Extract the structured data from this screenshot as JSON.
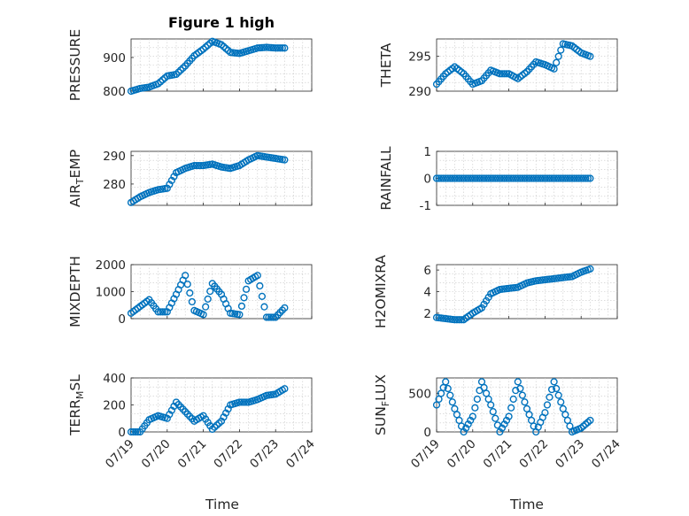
{
  "figure_title": "Figure 1 high",
  "colors": {
    "marker": "#0072bd",
    "axes": "#262626",
    "grid": "#c8c8c8"
  },
  "chart_data": [
    {
      "type": "scatter",
      "title": "Figure 1 high",
      "ylabel": "PRESSURE",
      "xlim": [
        "07/19",
        "07/24"
      ],
      "ylim": [
        800,
        955
      ],
      "yticks": [
        800,
        900
      ],
      "grid": true,
      "series": [
        {
          "x": [
            "07/19 00:00",
            "07/19 06:00",
            "07/19 12:00",
            "07/19 18:00",
            "07/20 00:00",
            "07/20 06:00",
            "07/20 12:00",
            "07/20 18:00",
            "07/21 00:00",
            "07/21 06:00",
            "07/21 12:00",
            "07/21 18:00",
            "07/22 00:00",
            "07/22 06:00",
            "07/22 12:00",
            "07/22 18:00",
            "07/23 00:00",
            "07/23 06:00"
          ],
          "y": [
            800,
            808,
            812,
            822,
            845,
            850,
            875,
            905,
            925,
            948,
            938,
            915,
            912,
            920,
            928,
            930,
            928,
            928
          ]
        }
      ]
    },
    {
      "type": "scatter",
      "ylabel": "THETA",
      "xlim": [
        "07/19",
        "07/24"
      ],
      "ylim": [
        290,
        297.5
      ],
      "yticks": [
        290,
        295
      ],
      "grid": true,
      "series": [
        {
          "x": [
            "07/19 00:00",
            "07/19 06:00",
            "07/19 12:00",
            "07/19 18:00",
            "07/20 00:00",
            "07/20 06:00",
            "07/20 12:00",
            "07/20 18:00",
            "07/21 00:00",
            "07/21 06:00",
            "07/21 12:00",
            "07/21 18:00",
            "07/22 00:00",
            "07/22 06:00",
            "07/22 12:00",
            "07/22 18:00",
            "07/23 00:00",
            "07/23 06:00"
          ],
          "y": [
            291,
            292.5,
            293.5,
            292.5,
            291,
            291.5,
            293,
            292.5,
            292.5,
            291.8,
            292.8,
            294.2,
            293.8,
            293.2,
            296.8,
            296.5,
            295.5,
            295
          ]
        }
      ]
    },
    {
      "type": "scatter",
      "ylabel": "AIR_TEMP",
      "xlim": [
        "07/19",
        "07/24"
      ],
      "ylim": [
        272.5,
        291.5
      ],
      "yticks": [
        280,
        290
      ],
      "grid": true,
      "series": [
        {
          "x": [
            "07/19 00:00",
            "07/19 06:00",
            "07/19 12:00",
            "07/19 18:00",
            "07/20 00:00",
            "07/20 06:00",
            "07/20 12:00",
            "07/20 18:00",
            "07/21 00:00",
            "07/21 06:00",
            "07/21 12:00",
            "07/21 18:00",
            "07/22 00:00",
            "07/22 06:00",
            "07/22 12:00",
            "07/22 18:00",
            "07/23 00:00",
            "07/23 06:00"
          ],
          "y": [
            273.5,
            275.5,
            277,
            278,
            278.5,
            284,
            285.5,
            286.5,
            286.5,
            287,
            286,
            285.5,
            286.5,
            288.5,
            290,
            289.5,
            289,
            288.5
          ]
        }
      ]
    },
    {
      "type": "scatter",
      "ylabel": "RAINFALL",
      "xlim": [
        "07/19",
        "07/24"
      ],
      "ylim": [
        -1,
        1
      ],
      "yticks": [
        -1,
        0,
        1
      ],
      "grid": true,
      "series": [
        {
          "x": [
            "07/19 00:00",
            "07/19 06:00",
            "07/19 12:00",
            "07/19 18:00",
            "07/20 00:00",
            "07/20 06:00",
            "07/20 12:00",
            "07/20 18:00",
            "07/21 00:00",
            "07/21 06:00",
            "07/21 12:00",
            "07/21 18:00",
            "07/22 00:00",
            "07/22 06:00",
            "07/22 12:00",
            "07/22 18:00",
            "07/23 00:00",
            "07/23 06:00"
          ],
          "y": [
            0,
            0,
            0,
            0,
            0,
            0,
            0,
            0,
            0,
            0,
            0,
            0,
            0,
            0,
            0,
            0,
            0,
            0
          ]
        }
      ]
    },
    {
      "type": "scatter",
      "ylabel": "MIXDEPTH",
      "xlim": [
        "07/19",
        "07/24"
      ],
      "ylim": [
        0,
        2000
      ],
      "yticks": [
        0,
        1000,
        2000
      ],
      "grid": true,
      "series": [
        {
          "x": [
            "07/19 00:00",
            "07/19 06:00",
            "07/19 12:00",
            "07/19 18:00",
            "07/20 00:00",
            "07/20 06:00",
            "07/20 12:00",
            "07/20 18:00",
            "07/21 00:00",
            "07/21 06:00",
            "07/21 12:00",
            "07/21 18:00",
            "07/22 00:00",
            "07/22 06:00",
            "07/22 12:00",
            "07/22 18:00",
            "07/23 00:00",
            "07/23 06:00"
          ],
          "y": [
            200,
            450,
            700,
            250,
            250,
            900,
            1600,
            300,
            150,
            1300,
            900,
            200,
            150,
            1400,
            1600,
            50,
            50,
            400
          ]
        }
      ]
    },
    {
      "type": "scatter",
      "ylabel": "H2OMIXRA",
      "xlim": [
        "07/19",
        "07/24"
      ],
      "ylim": [
        1.5,
        6.5
      ],
      "yticks": [
        2,
        4,
        6
      ],
      "grid": true,
      "series": [
        {
          "x": [
            "07/19 00:00",
            "07/19 06:00",
            "07/19 12:00",
            "07/19 18:00",
            "07/20 00:00",
            "07/20 06:00",
            "07/20 12:00",
            "07/20 18:00",
            "07/21 00:00",
            "07/21 06:00",
            "07/21 12:00",
            "07/21 18:00",
            "07/22 00:00",
            "07/22 06:00",
            "07/22 12:00",
            "07/22 18:00",
            "07/23 00:00",
            "07/23 06:00"
          ],
          "y": [
            1.6,
            1.5,
            1.4,
            1.4,
            2,
            2.5,
            3.8,
            4.2,
            4.3,
            4.4,
            4.8,
            5,
            5.1,
            5.2,
            5.3,
            5.4,
            5.8,
            6.1
          ]
        }
      ]
    },
    {
      "type": "scatter",
      "ylabel": "TERR_MSL",
      "xlim": [
        "07/19",
        "07/24"
      ],
      "ylim": [
        0,
        400
      ],
      "yticks": [
        0,
        200,
        400
      ],
      "grid": true,
      "series": [
        {
          "x": [
            "07/19 00:00",
            "07/19 06:00",
            "07/19 12:00",
            "07/19 18:00",
            "07/20 00:00",
            "07/20 06:00",
            "07/20 12:00",
            "07/20 18:00",
            "07/21 00:00",
            "07/21 06:00",
            "07/21 12:00",
            "07/21 18:00",
            "07/22 00:00",
            "07/22 06:00",
            "07/22 12:00",
            "07/22 18:00",
            "07/23 00:00",
            "07/23 06:00"
          ],
          "y": [
            0,
            0,
            90,
            120,
            100,
            220,
            150,
            80,
            120,
            20,
            80,
            200,
            220,
            220,
            240,
            270,
            280,
            320
          ]
        }
      ]
    },
    {
      "type": "scatter",
      "ylabel": "SUN_FLUX",
      "xlim": [
        "07/19",
        "07/24"
      ],
      "ylim": [
        0,
        700
      ],
      "yticks": [
        0,
        500
      ],
      "grid": true,
      "series": [
        {
          "x": [
            "07/19 00:00",
            "07/19 06:00",
            "07/19 12:00",
            "07/19 18:00",
            "07/20 00:00",
            "07/20 06:00",
            "07/20 12:00",
            "07/20 18:00",
            "07/21 00:00",
            "07/21 06:00",
            "07/21 12:00",
            "07/21 18:00",
            "07/22 00:00",
            "07/22 06:00",
            "07/22 12:00",
            "07/22 18:00",
            "07/23 00:00",
            "07/23 06:00"
          ],
          "y": [
            350,
            650,
            300,
            0,
            200,
            650,
            350,
            0,
            200,
            650,
            300,
            0,
            250,
            650,
            300,
            0,
            50,
            150
          ]
        }
      ]
    }
  ],
  "xtick_labels": [
    "07/19",
    "07/20",
    "07/21",
    "07/22",
    "07/23",
    "07/24"
  ],
  "xlabel": "Time"
}
